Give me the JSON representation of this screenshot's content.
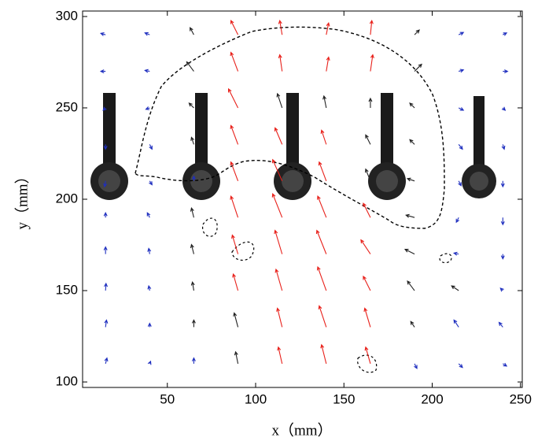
{
  "chart_data": {
    "type": "quiver",
    "xlabel": "x（mm）",
    "ylabel": "y（mm）",
    "xlim": [
      2,
      251
    ],
    "ylim": [
      97,
      303
    ],
    "xticks": [
      50,
      100,
      150,
      200,
      250
    ],
    "yticks": [
      100,
      150,
      200,
      250,
      300
    ],
    "vectors": {
      "x": [
        15,
        40,
        65,
        90,
        115,
        140,
        165,
        190,
        215,
        240,
        15,
        40,
        65,
        90,
        115,
        140,
        165,
        190,
        215,
        240,
        15,
        40,
        65,
        90,
        115,
        140,
        165,
        190,
        215,
        240,
        15,
        40,
        65,
        90,
        115,
        140,
        165,
        190,
        215,
        240,
        15,
        40,
        65,
        90,
        115,
        140,
        165,
        190,
        215,
        240,
        15,
        40,
        65,
        90,
        115,
        140,
        165,
        190,
        215,
        240,
        15,
        40,
        65,
        90,
        115,
        140,
        165,
        190,
        215,
        240,
        15,
        40,
        65,
        90,
        115,
        140,
        165,
        190,
        215,
        240,
        15,
        40,
        65,
        90,
        115,
        140,
        165,
        190,
        215,
        240,
        15,
        40,
        65,
        90,
        115,
        140,
        165,
        190,
        215,
        240
      ],
      "y": [
        290,
        290,
        290,
        290,
        290,
        290,
        290,
        290,
        290,
        290,
        270,
        270,
        270,
        270,
        270,
        270,
        270,
        270,
        270,
        270,
        250,
        250,
        250,
        250,
        250,
        250,
        250,
        250,
        250,
        250,
        230,
        230,
        230,
        230,
        230,
        230,
        230,
        230,
        230,
        230,
        210,
        210,
        210,
        210,
        210,
        210,
        210,
        210,
        210,
        210,
        190,
        190,
        190,
        190,
        190,
        190,
        190,
        190,
        190,
        190,
        170,
        170,
        170,
        170,
        170,
        170,
        170,
        170,
        170,
        170,
        150,
        150,
        150,
        150,
        150,
        150,
        150,
        150,
        150,
        150,
        130,
        130,
        130,
        130,
        130,
        130,
        130,
        130,
        130,
        130,
        110,
        110,
        110,
        110,
        110,
        110,
        110,
        110,
        110,
        110
      ],
      "u": [
        -1,
        -1,
        -0.8,
        -1.5,
        -0.5,
        0.5,
        0.3,
        1,
        1,
        0.8,
        -1,
        -1,
        -1.5,
        -1.5,
        -0.5,
        0.5,
        0.5,
        1.5,
        1,
        1,
        -0.5,
        -0.8,
        -1,
        -2,
        -1,
        -0.5,
        0,
        -1,
        1,
        0.5,
        0,
        0.5,
        -0.5,
        -1.5,
        -1.5,
        -1,
        -1,
        -1,
        0.8,
        0.3,
        -0.2,
        0.5,
        0,
        -1.5,
        -2,
        -1.5,
        -1,
        -1.5,
        0.5,
        0,
        0,
        -0.5,
        -0.5,
        -1.5,
        -2,
        -1.8,
        -1.5,
        -1.8,
        -0.5,
        0,
        0,
        -0.2,
        -0.5,
        -1.2,
        -1.5,
        -2,
        -2,
        -2,
        -1,
        0,
        0.1,
        -0.2,
        -0.3,
        -1,
        -1.3,
        -1.8,
        -1.5,
        -1.5,
        -1.5,
        -0.5,
        0.2,
        0,
        0,
        -0.8,
        -1,
        -1.5,
        -1.2,
        -0.8,
        -1,
        -0.8,
        0.3,
        0.2,
        0,
        -0.5,
        -0.8,
        -1,
        -1,
        0.5,
        0.8,
        0.8
      ],
      "v": [
        0.3,
        0.4,
        1.5,
        3,
        3,
        2.5,
        3,
        1,
        0.5,
        0.4,
        0,
        0.2,
        2,
        4,
        3.5,
        3,
        3.5,
        1.5,
        0.3,
        0,
        -0.5,
        -0.3,
        1,
        4,
        3,
        2.5,
        2,
        1,
        -0.5,
        -0.5,
        -1,
        -1,
        1.5,
        4,
        3.5,
        3,
        2,
        1,
        -1,
        -1,
        -1.2,
        -0.8,
        1,
        4,
        4.5,
        4,
        2.5,
        0.5,
        -1,
        -1.2,
        1,
        1,
        2,
        4.5,
        5,
        4.5,
        3,
        0.5,
        -1,
        -1.5,
        1.5,
        1.2,
        2,
        4,
        5,
        5,
        3,
        1,
        0.2,
        -1,
        1.5,
        1,
        1.8,
        3.5,
        4.5,
        5,
        3,
        2,
        1,
        0.5,
        1.5,
        0.8,
        1.5,
        3,
        4,
        4.5,
        4,
        1.2,
        1.5,
        1,
        1.2,
        0.5,
        1.2,
        2.5,
        3.5,
        4,
        3.5,
        -1,
        -0.8,
        -0.5
      ],
      "color": [
        "#1f2fbf",
        "#1f2fbf",
        "#222222",
        "#e8201a",
        "#e8201a",
        "#e8201a",
        "#e8201a",
        "#222222",
        "#1f2fbf",
        "#1f2fbf",
        "#1f2fbf",
        "#1f2fbf",
        "#222222",
        "#e8201a",
        "#e8201a",
        "#e8201a",
        "#e8201a",
        "#222222",
        "#1f2fbf",
        "#1f2fbf",
        "#1f2fbf",
        "#1f2fbf",
        "#222222",
        "#e8201a",
        "#222222",
        "#222222",
        "#222222",
        "#222222",
        "#1f2fbf",
        "#1f2fbf",
        "#1f2fbf",
        "#1f2fbf",
        "#222222",
        "#e8201a",
        "#e8201a",
        "#e8201a",
        "#222222",
        "#222222",
        "#1f2fbf",
        "#1f2fbf",
        "#1f2fbf",
        "#1f2fbf",
        "#1f2fbf",
        "#e8201a",
        "#e8201a",
        "#e8201a",
        "#222222",
        "#222222",
        "#1f2fbf",
        "#1f2fbf",
        "#1f2fbf",
        "#1f2fbf",
        "#222222",
        "#e8201a",
        "#e8201a",
        "#e8201a",
        "#e8201a",
        "#222222",
        "#1f2fbf",
        "#1f2fbf",
        "#1f2fbf",
        "#1f2fbf",
        "#222222",
        "#e8201a",
        "#e8201a",
        "#e8201a",
        "#e8201a",
        "#222222",
        "#1f2fbf",
        "#1f2fbf",
        "#1f2fbf",
        "#1f2fbf",
        "#222222",
        "#e8201a",
        "#e8201a",
        "#e8201a",
        "#e8201a",
        "#222222",
        "#222222",
        "#1f2fbf",
        "#1f2fbf",
        "#1f2fbf",
        "#222222",
        "#222222",
        "#e8201a",
        "#e8201a",
        "#e8201a",
        "#222222",
        "#1f2fbf",
        "#1f2fbf",
        "#1f2fbf",
        "#1f2fbf",
        "#1f2fbf",
        "#222222",
        "#e8201a",
        "#e8201a",
        "#e8201a",
        "#1f2fbf",
        "#1f2fbf",
        "#1f2fbf"
      ]
    }
  }
}
